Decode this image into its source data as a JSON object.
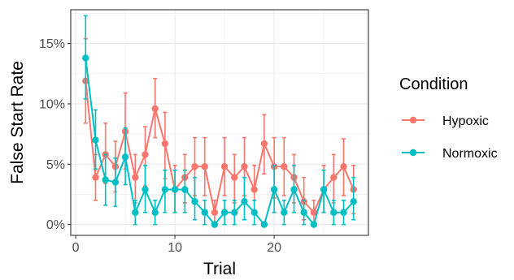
{
  "chart_data": {
    "type": "line",
    "xlabel": "Trial",
    "ylabel": "False Start Rate",
    "xlim": [
      -0.5,
      29.5
    ],
    "ylim": [
      -0.9,
      17.8
    ],
    "x_ticks": [
      0,
      10,
      20
    ],
    "y_ticks": [
      0,
      5,
      10,
      15
    ],
    "y_tick_labels": [
      "0%",
      "5%",
      "10%",
      "15%"
    ],
    "grid": true,
    "legend": {
      "title": "Condition",
      "position": "right"
    },
    "x": [
      1,
      2,
      3,
      4,
      5,
      6,
      7,
      8,
      9,
      10,
      11,
      12,
      13,
      14,
      15,
      16,
      17,
      18,
      19,
      20,
      21,
      22,
      23,
      24,
      25,
      26,
      27,
      28
    ],
    "series": [
      {
        "name": "Hypoxic",
        "color": "#F8766D",
        "values": [
          11.9,
          3.9,
          5.8,
          4.8,
          7.7,
          3.9,
          5.8,
          9.6,
          6.7,
          2.9,
          3.9,
          4.8,
          4.8,
          1.0,
          4.8,
          3.9,
          4.8,
          2.9,
          6.7,
          4.8,
          4.8,
          3.9,
          1.9,
          1.0,
          2.9,
          3.9,
          4.8,
          2.9
        ],
        "error_low": [
          8.4,
          2.0,
          3.4,
          2.7,
          4.6,
          1.8,
          3.2,
          7.2,
          3.8,
          1.0,
          1.8,
          2.4,
          2.4,
          0.0,
          2.4,
          1.8,
          2.4,
          1.0,
          4.2,
          2.2,
          2.4,
          1.8,
          0.4,
          0.0,
          1.0,
          1.8,
          2.4,
          0.9
        ],
        "error_high": [
          15.4,
          5.8,
          8.4,
          6.9,
          10.9,
          5.8,
          8.1,
          12.1,
          9.3,
          4.9,
          5.8,
          7.2,
          7.2,
          2.0,
          7.2,
          5.8,
          7.2,
          4.9,
          9.1,
          7.2,
          7.2,
          5.8,
          3.9,
          2.0,
          4.9,
          5.8,
          7.1,
          4.9
        ]
      },
      {
        "name": "Normoxic",
        "color": "#00BFC4",
        "values": [
          13.8,
          7.0,
          3.7,
          3.5,
          5.6,
          1.0,
          2.9,
          1.0,
          2.9,
          2.9,
          2.9,
          1.9,
          1.0,
          0.0,
          1.0,
          1.0,
          1.9,
          1.0,
          0.0,
          2.9,
          1.0,
          2.9,
          1.0,
          0.0,
          2.9,
          1.0,
          1.0,
          1.9
        ],
        "error_low": [
          10.4,
          4.6,
          1.6,
          1.5,
          3.3,
          0.0,
          1.0,
          0.0,
          1.0,
          1.0,
          1.0,
          0.4,
          0.0,
          0.0,
          0.0,
          0.0,
          0.4,
          0.0,
          0.0,
          1.0,
          0.0,
          1.0,
          0.0,
          0.0,
          1.0,
          0.0,
          0.0,
          0.4
        ],
        "error_high": [
          17.3,
          9.5,
          5.8,
          5.5,
          8.0,
          2.0,
          4.9,
          2.0,
          4.5,
          4.5,
          4.5,
          3.9,
          2.0,
          0.0,
          2.0,
          2.0,
          3.9,
          2.0,
          0.0,
          4.9,
          2.0,
          4.9,
          2.0,
          0.0,
          4.5,
          2.0,
          2.0,
          3.9
        ]
      }
    ]
  }
}
